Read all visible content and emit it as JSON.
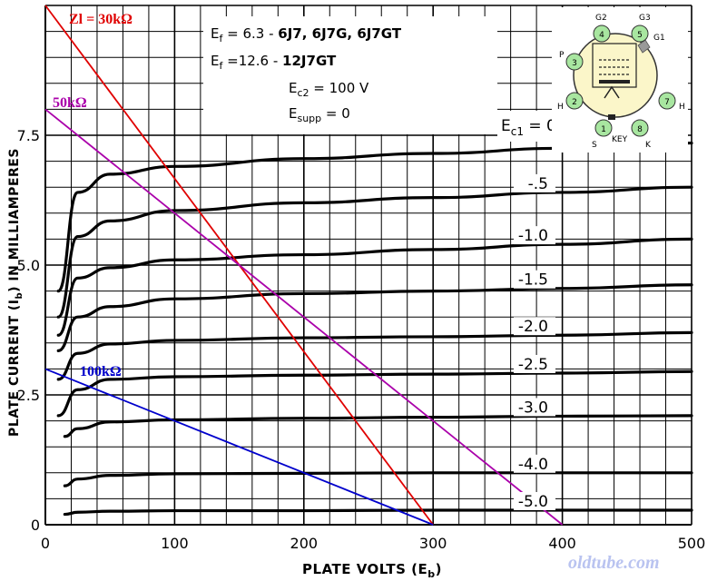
{
  "chart_data": {
    "type": "line",
    "title": "",
    "xlabel_pre": "PLATE VOLTS (E",
    "xlabel_sub": "b",
    "xlabel_post": ")",
    "ylabel_pre": "PLATE CURRENT (I",
    "ylabel_sub": "b",
    "ylabel_post": ") IN MILLIAMPERES",
    "xlim": [
      0,
      500
    ],
    "ylim": [
      0,
      10
    ],
    "xticks": [
      0,
      100,
      200,
      300,
      400,
      500
    ],
    "yticks": [
      0,
      2.5,
      5.0,
      7.5
    ],
    "ytick_labels": [
      "0",
      "2.5",
      "5.0",
      "7.5"
    ],
    "grid": true,
    "info_box": {
      "line1_a": "E",
      "line1_sub": "f",
      "line1_b": " = 6.3 - ",
      "line1_bold": "6J7, 6J7G, 6J7GT",
      "line2_a": "E",
      "line2_sub": "f",
      "line2_b": " =12.6 - ",
      "line2_bold": "12J7GT",
      "line3_a": "E",
      "line3_sub": "c2",
      "line3_b": " = 100 V",
      "line4_a": "E",
      "line4_sub": "supp",
      "line4_b": " = 0"
    },
    "ec1_label_a": "E",
    "ec1_label_sub": "c1",
    "ec1_label_b": " = 0",
    "series": [
      {
        "name": "0",
        "label": "",
        "x": [
          10,
          25,
          50,
          100,
          200,
          300,
          400,
          500
        ],
        "y": [
          4.5,
          6.4,
          6.75,
          6.9,
          7.05,
          7.15,
          7.25,
          7.35
        ]
      },
      {
        "name": "-.5",
        "label": "-.5",
        "x": [
          10,
          25,
          50,
          100,
          200,
          300,
          400,
          500
        ],
        "y": [
          4.0,
          5.55,
          5.85,
          6.05,
          6.2,
          6.3,
          6.4,
          6.5
        ]
      },
      {
        "name": "-1.0",
        "label": "-1.0",
        "x": [
          10,
          25,
          50,
          100,
          200,
          300,
          400,
          500
        ],
        "y": [
          3.65,
          4.75,
          4.95,
          5.1,
          5.2,
          5.3,
          5.4,
          5.5
        ]
      },
      {
        "name": "-1.5",
        "label": "-1.5",
        "x": [
          10,
          25,
          50,
          100,
          200,
          300,
          400,
          500
        ],
        "y": [
          3.35,
          4.0,
          4.2,
          4.35,
          4.45,
          4.5,
          4.55,
          4.62
        ]
      },
      {
        "name": "-2.0",
        "label": "-2.0",
        "x": [
          10,
          25,
          50,
          100,
          200,
          300,
          400,
          500
        ],
        "y": [
          2.8,
          3.3,
          3.48,
          3.55,
          3.6,
          3.62,
          3.65,
          3.7
        ]
      },
      {
        "name": "-2.5",
        "label": "-2.5",
        "x": [
          10,
          25,
          50,
          100,
          200,
          300,
          400,
          500
        ],
        "y": [
          2.1,
          2.6,
          2.8,
          2.85,
          2.88,
          2.9,
          2.92,
          2.95
        ]
      },
      {
        "name": "-3.0",
        "label": "-3.0",
        "x": [
          15,
          25,
          50,
          100,
          200,
          300,
          400,
          500
        ],
        "y": [
          1.7,
          1.85,
          1.98,
          2.02,
          2.05,
          2.07,
          2.09,
          2.1
        ]
      },
      {
        "name": "-4.0",
        "label": "-4.0",
        "x": [
          15,
          25,
          50,
          100,
          200,
          300,
          400,
          500
        ],
        "y": [
          0.75,
          0.88,
          0.95,
          0.98,
          0.99,
          1.0,
          1.0,
          1.0
        ]
      },
      {
        "name": "-5.0",
        "label": "-5.0",
        "x": [
          15,
          25,
          50,
          100,
          200,
          300,
          400,
          500
        ],
        "y": [
          0.2,
          0.24,
          0.26,
          0.27,
          0.27,
          0.28,
          0.28,
          0.28
        ]
      }
    ],
    "load_lines": [
      {
        "label": "Zl = 30kΩ",
        "color": "#e00000",
        "x": [
          0,
          300
        ],
        "y": [
          10,
          0
        ]
      },
      {
        "label": "50kΩ",
        "color": "#aa00aa",
        "x": [
          0,
          400
        ],
        "y": [
          8.0,
          0
        ]
      },
      {
        "label": "100kΩ",
        "color": "#0000cc",
        "x": [
          0,
          300
        ],
        "y": [
          3.0,
          0
        ]
      }
    ]
  },
  "tube_diagram": {
    "pins": [
      "1",
      "2",
      "3",
      "4",
      "5",
      "7",
      "8"
    ],
    "pin_labels": [
      "G2",
      "G3",
      "G1",
      "P",
      "H",
      "H",
      "S",
      "KEY",
      "K"
    ]
  },
  "watermark": "oldtube.com"
}
